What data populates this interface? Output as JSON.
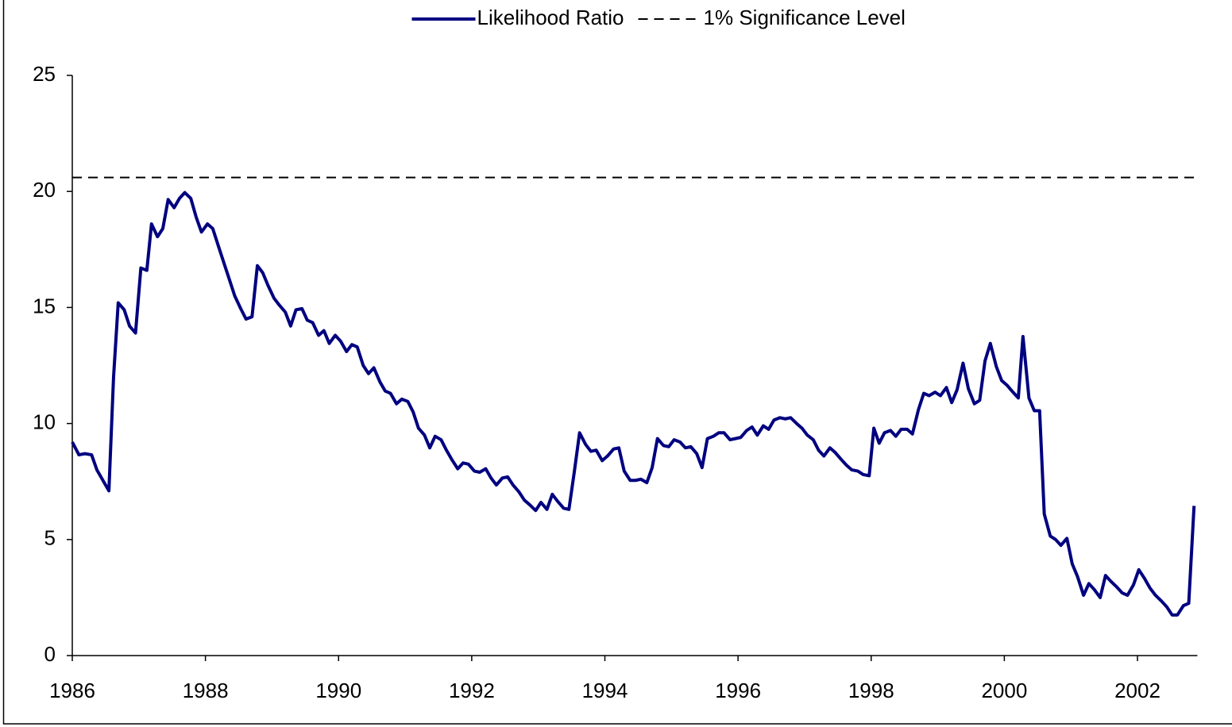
{
  "chart_data": {
    "type": "line",
    "series": [
      {
        "name": "Likelihood Ratio",
        "color": "#000080",
        "dash": false,
        "x": [
          1986.0,
          1986.1,
          1986.19,
          1986.29,
          1986.37,
          1986.47,
          1986.55,
          1986.62,
          1986.69,
          1986.78,
          1986.86,
          1986.95,
          1987.03,
          1987.12,
          1987.19,
          1987.28,
          1987.36,
          1987.44,
          1987.53,
          1987.61,
          1987.69,
          1987.78,
          1987.86,
          1987.94,
          1988.03,
          1988.11,
          1988.2,
          1988.28,
          1988.36,
          1988.44,
          1988.53,
          1988.61,
          1988.7,
          1988.78,
          1988.86,
          1988.94,
          1989.03,
          1989.11,
          1989.2,
          1989.28,
          1989.36,
          1989.45,
          1989.53,
          1989.61,
          1989.7,
          1989.78,
          1989.86,
          1989.95,
          1990.03,
          1990.12,
          1990.2,
          1990.28,
          1990.37,
          1990.45,
          1990.53,
          1990.62,
          1990.7,
          1990.78,
          1990.87,
          1990.95,
          1991.04,
          1991.12,
          1991.2,
          1991.29,
          1991.37,
          1991.45,
          1991.54,
          1991.62,
          1991.7,
          1991.79,
          1991.87,
          1991.95,
          1992.04,
          1992.12,
          1992.21,
          1992.29,
          1992.37,
          1992.46,
          1992.54,
          1992.62,
          1992.71,
          1992.79,
          1992.87,
          1992.96,
          1993.04,
          1993.13,
          1993.21,
          1993.29,
          1993.38,
          1993.46,
          1993.54,
          1993.62,
          1993.71,
          1993.79,
          1993.87,
          1993.96,
          1994.04,
          1994.13,
          1994.21,
          1994.29,
          1994.38,
          1994.46,
          1994.54,
          1994.63,
          1994.71,
          1994.79,
          1994.88,
          1994.96,
          1995.04,
          1995.13,
          1995.21,
          1995.29,
          1995.38,
          1995.46,
          1995.54,
          1995.63,
          1995.71,
          1995.79,
          1995.88,
          1995.96,
          1996.04,
          1996.13,
          1996.21,
          1996.29,
          1996.38,
          1996.46,
          1996.54,
          1996.63,
          1996.71,
          1996.79,
          1996.88,
          1996.96,
          1997.04,
          1997.13,
          1997.21,
          1997.29,
          1997.38,
          1997.46,
          1997.55,
          1997.63,
          1997.71,
          1997.8,
          1997.88,
          1997.97,
          1998.04,
          1998.12,
          1998.2,
          1998.29,
          1998.37,
          1998.45,
          1998.54,
          1998.62,
          1998.71,
          1998.79,
          1998.87,
          1998.96,
          1999.04,
          1999.13,
          1999.21,
          1999.29,
          1999.38,
          1999.46,
          1999.55,
          1999.63,
          1999.71,
          1999.79,
          1999.88,
          1999.96,
          2000.04,
          2000.13,
          2000.21,
          2000.28,
          2000.37,
          2000.45,
          2000.53,
          2000.6,
          2000.69,
          2000.77,
          2000.85,
          2000.94,
          2001.02,
          2001.1,
          2001.19,
          2001.27,
          2001.35,
          2001.44,
          2001.52,
          2001.6,
          2001.69,
          2001.77,
          2001.85,
          2001.94,
          2002.02,
          2002.1,
          2002.19,
          2002.27,
          2002.36,
          2002.44,
          2002.52,
          2002.6,
          2002.69,
          2002.77,
          2002.85
        ],
        "values": [
          9.2,
          8.65,
          8.7,
          8.65,
          8.0,
          7.5,
          7.1,
          12.0,
          15.2,
          14.9,
          14.2,
          13.9,
          16.7,
          16.6,
          18.6,
          18.05,
          18.4,
          19.65,
          19.3,
          19.7,
          19.95,
          19.7,
          18.9,
          18.25,
          18.6,
          18.4,
          17.6,
          16.9,
          16.2,
          15.5,
          14.95,
          14.5,
          14.6,
          16.8,
          16.5,
          15.95,
          15.4,
          15.1,
          14.8,
          14.2,
          14.9,
          14.95,
          14.45,
          14.35,
          13.8,
          14.0,
          13.45,
          13.8,
          13.55,
          13.1,
          13.4,
          13.3,
          12.5,
          12.15,
          12.4,
          11.8,
          11.4,
          11.3,
          10.85,
          11.05,
          10.95,
          10.5,
          9.8,
          9.5,
          8.95,
          9.45,
          9.3,
          8.85,
          8.45,
          8.05,
          8.3,
          8.25,
          7.95,
          7.9,
          8.05,
          7.65,
          7.35,
          7.65,
          7.7,
          7.35,
          7.05,
          6.7,
          6.5,
          6.25,
          6.6,
          6.3,
          6.95,
          6.65,
          6.35,
          6.3,
          7.9,
          9.6,
          9.1,
          8.8,
          8.85,
          8.4,
          8.6,
          8.9,
          8.95,
          7.95,
          7.55,
          7.55,
          7.6,
          7.45,
          8.1,
          9.35,
          9.05,
          9.0,
          9.3,
          9.2,
          8.95,
          9.0,
          8.7,
          8.1,
          9.35,
          9.45,
          9.6,
          9.6,
          9.3,
          9.35,
          9.4,
          9.7,
          9.85,
          9.5,
          9.9,
          9.75,
          10.15,
          10.25,
          10.2,
          10.25,
          10.0,
          9.8,
          9.5,
          9.3,
          8.85,
          8.6,
          8.95,
          8.75,
          8.45,
          8.2,
          8.0,
          7.95,
          7.8,
          7.75,
          9.8,
          9.15,
          9.6,
          9.7,
          9.45,
          9.75,
          9.75,
          9.55,
          10.6,
          11.3,
          11.2,
          11.35,
          11.2,
          11.55,
          10.9,
          11.45,
          12.6,
          11.5,
          10.85,
          11.0,
          12.7,
          13.45,
          12.45,
          11.85,
          11.65,
          11.35,
          11.1,
          13.75,
          11.1,
          10.55,
          10.55,
          6.1,
          5.15,
          5.0,
          4.75,
          5.05,
          3.95,
          3.4,
          2.6,
          3.1,
          2.85,
          2.5,
          3.45,
          3.2,
          2.95,
          2.7,
          2.6,
          3.05,
          3.7,
          3.35,
          2.9,
          2.6,
          2.35,
          2.1,
          1.75,
          1.75,
          2.15,
          2.25,
          6.45
        ]
      },
      {
        "name": "1% Significance Level",
        "color": "#000000",
        "dash": true,
        "x": [
          1986,
          2002.9
        ],
        "values": [
          20.6,
          20.6
        ]
      }
    ],
    "xlim": [
      1986,
      2002.9
    ],
    "xticks": [
      1986,
      1988,
      1990,
      1992,
      1994,
      1996,
      1998,
      2000,
      2002
    ],
    "ylim": [
      0,
      25
    ],
    "yticks": [
      0,
      5,
      10,
      15,
      20,
      25
    ],
    "grid": false,
    "legend": "top"
  }
}
